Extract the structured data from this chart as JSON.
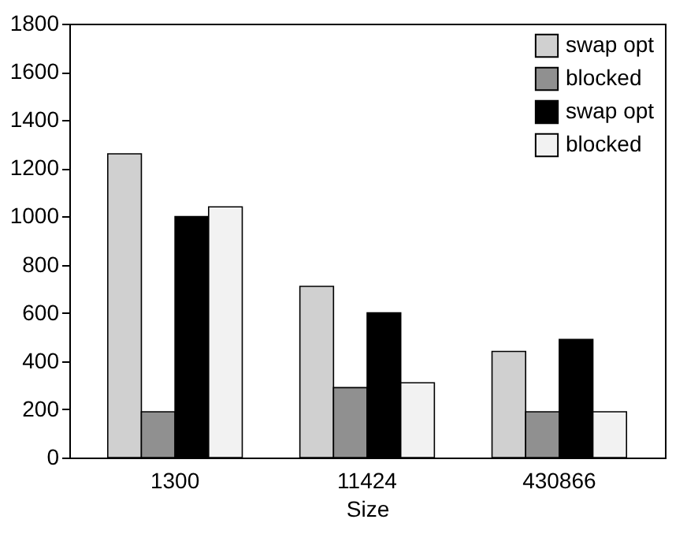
{
  "chart_data": {
    "type": "bar",
    "xlabel": "Size",
    "categories": [
      "1300",
      "11424",
      "430866"
    ],
    "series": [
      {
        "name": "swap opt",
        "color": "#d0d0d0",
        "values": [
          1260,
          710,
          440
        ]
      },
      {
        "name": "blocked",
        "color": "#909090",
        "values": [
          190,
          290,
          190
        ]
      },
      {
        "name": "swap opt",
        "color": "#000000",
        "values": [
          1000,
          600,
          490
        ]
      },
      {
        "name": "blocked",
        "color": "#f2f2f2",
        "values": [
          1040,
          310,
          190
        ]
      }
    ],
    "ylim": [
      0,
      1800
    ],
    "yticks": [
      0,
      200,
      400,
      600,
      800,
      1000,
      1200,
      1400,
      1600,
      1800
    ],
    "grid": false,
    "legend": "top right"
  }
}
